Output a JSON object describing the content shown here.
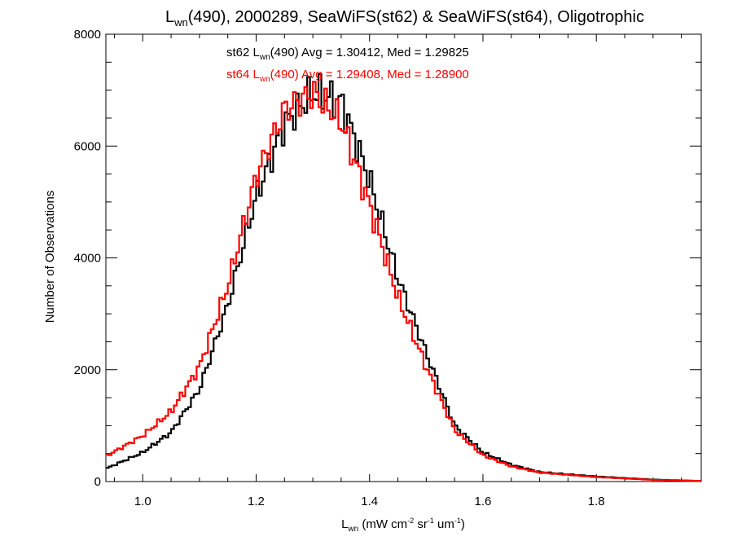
{
  "chart_data": {
    "type": "line",
    "step": true,
    "title": {
      "pre": "L",
      "sub": "wn",
      "post": "(490), 2000289, SeaWiFS(st62) & SeaWiFS(st64), Oligotrophic"
    },
    "xlabel": {
      "pre": "L",
      "sub": "wn",
      "mid1": " (mW cm",
      "sup1": "-2",
      "mid2": " sr",
      "sup2": "-1",
      "mid3": " um",
      "sup3": "-1",
      "post": ")"
    },
    "ylabel": "Number of Observations",
    "xlim": [
      0.935,
      1.985
    ],
    "ylim": [
      0,
      8000
    ],
    "xticks": [
      1.0,
      1.2,
      1.4,
      1.6,
      1.8
    ],
    "xtick_labels": [
      "1.0",
      "1.2",
      "1.4",
      "1.6",
      "1.8"
    ],
    "yticks": [
      0,
      2000,
      4000,
      6000,
      8000
    ],
    "ytick_labels": [
      "0",
      "2000",
      "4000",
      "6000",
      "8000"
    ],
    "grid": false,
    "annotations": [
      {
        "pre": "st62 L",
        "sub": "wn",
        "post": "(490) Avg = 1.30412, Med = 1.29825",
        "color": "#000000"
      },
      {
        "pre": "st64 L",
        "sub": "wn",
        "post": "(490) Avg = 1.29408, Med = 1.28900",
        "color": "#ff0000"
      }
    ],
    "x": [
      0.935,
      1.0,
      1.05,
      1.1,
      1.15,
      1.2,
      1.25,
      1.3,
      1.35,
      1.4,
      1.45,
      1.5,
      1.55,
      1.6,
      1.65,
      1.7,
      1.8,
      1.9,
      1.985
    ],
    "series": [
      {
        "name": "st62",
        "color": "#000000",
        "values": [
          230,
          520,
          880,
          1650,
          3150,
          5100,
          6400,
          6950,
          6800,
          5400,
          3650,
          2300,
          1000,
          520,
          300,
          170,
          90,
          35,
          10
        ]
      },
      {
        "name": "st64",
        "color": "#ff0000",
        "values": [
          450,
          820,
          1250,
          2050,
          3500,
          5450,
          6650,
          6950,
          6450,
          4950,
          3300,
          2050,
          920,
          470,
          270,
          160,
          80,
          30,
          10
        ]
      }
    ]
  }
}
